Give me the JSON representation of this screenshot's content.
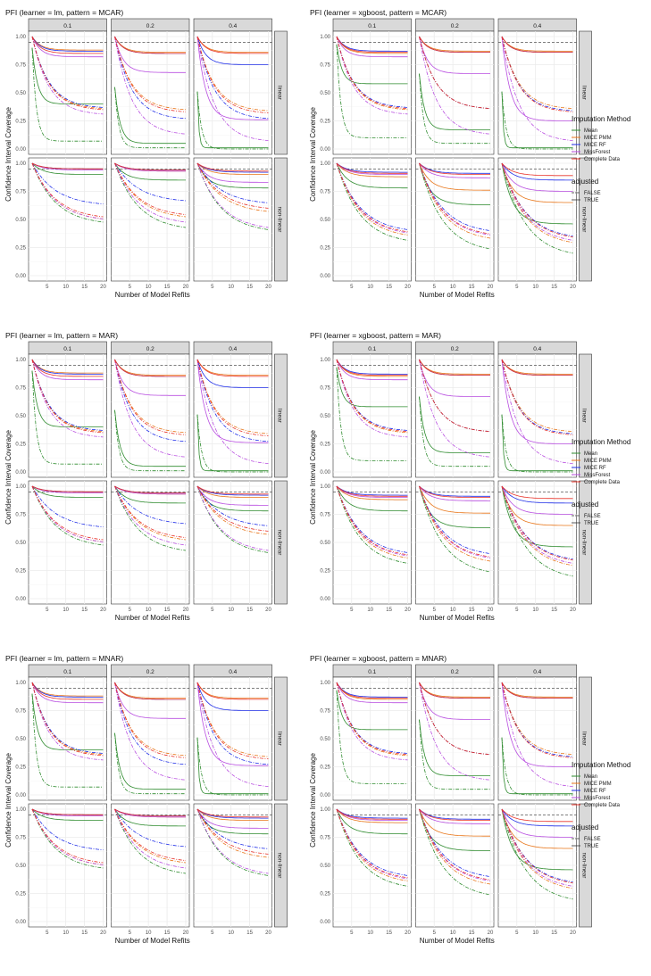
{
  "common": {
    "xlabel": "Number of Model Refits",
    "ylabel": "Confidence Interval Coverage",
    "col_strips": [
      "0.1",
      "0.2",
      "0.4"
    ],
    "row_strips": [
      "linear",
      "non-linear"
    ],
    "x_ticks": [
      "5",
      "10",
      "15",
      "20"
    ],
    "y_ticks": [
      "0.00",
      "0.25",
      "0.50",
      "0.75",
      "1.00"
    ],
    "nominal_level": 0.95,
    "legend": {
      "method_title": "Imputation Method",
      "methods": [
        {
          "label": "Mean",
          "color": "#2e8b2e"
        },
        {
          "label": "MICE PMM",
          "color": "#e87518"
        },
        {
          "label": "MICE RF",
          "color": "#1f2ee8"
        },
        {
          "label": "MissForest",
          "color": "#b84de0"
        },
        {
          "label": "Complete Data",
          "color": "#e8342b"
        }
      ],
      "adjusted_title": "adjusted",
      "adjusted": [
        {
          "label": "FALSE",
          "linetype": "dotdash"
        },
        {
          "label": "TRUE",
          "linetype": "solid"
        }
      ]
    }
  },
  "chart_data": [
    {
      "type": "line",
      "title": "PFI (learner = lm, pattern = MCAR)",
      "xlim": [
        1,
        20
      ],
      "ylim": [
        0,
        1
      ]
    },
    {
      "type": "line",
      "title": "PFI (learner = xgboost, pattern = MCAR)",
      "xlim": [
        1,
        20
      ],
      "ylim": [
        0,
        1
      ]
    },
    {
      "type": "line",
      "title": "PFI (learner = lm, pattern = MAR)",
      "xlim": [
        1,
        20
      ],
      "ylim": [
        0,
        1
      ]
    },
    {
      "type": "line",
      "title": "PFI (learner = xgboost, pattern = MAR)",
      "xlim": [
        1,
        20
      ],
      "ylim": [
        0,
        1
      ]
    },
    {
      "type": "line",
      "title": "PFI (learner = lm, pattern = MNAR)",
      "xlim": [
        1,
        20
      ],
      "ylim": [
        0,
        1
      ]
    },
    {
      "type": "line",
      "title": "PFI (learner = xgboost, pattern = MNAR)",
      "xlim": [
        1,
        20
      ],
      "ylim": [
        0,
        1
      ]
    }
  ],
  "series_params": {
    "note": "approximate curve shape per panel: start value at x=1, end value at x=20, decay rate; order = lm-linear, lm-nonlinear, xgb-linear, xgb-nonlinear per missing rate 0.1/0.2/0.4",
    "lm_linear": {
      "0.1": {
        "Mean": [
          0.4,
          0.07
        ],
        "MICE PMM": [
          0.88,
          0.35
        ],
        "MICE RF": [
          0.87,
          0.36
        ],
        "MissForest": [
          0.82,
          0.3
        ],
        "Complete Data": [
          0.85,
          0.34
        ]
      },
      "0.2": {
        "Mean": [
          0.05,
          0.01
        ],
        "MICE PMM": [
          0.86,
          0.34
        ],
        "MICE RF": [
          0.85,
          0.26
        ],
        "MissForest": [
          0.68,
          0.12
        ],
        "Complete Data": [
          0.85,
          0.32
        ]
      },
      "0.4": {
        "Mean": [
          0.01,
          0.0
        ],
        "MICE PMM": [
          0.86,
          0.33
        ],
        "MICE RF": [
          0.75,
          0.26
        ],
        "MissForest": [
          0.26,
          0.06
        ],
        "Complete Data": [
          0.85,
          0.31
        ]
      }
    },
    "lm_nonlinear": {
      "0.1": {
        "Mean": [
          0.9,
          0.45
        ],
        "MICE PMM": [
          0.95,
          0.48
        ],
        "MICE RF": [
          0.95,
          0.62
        ],
        "MissForest": [
          0.94,
          0.48
        ],
        "Complete Data": [
          0.95,
          0.5
        ]
      },
      "0.2": {
        "Mean": [
          0.85,
          0.4
        ],
        "MICE PMM": [
          0.93,
          0.5
        ],
        "MICE RF": [
          0.94,
          0.65
        ],
        "MissForest": [
          0.93,
          0.45
        ],
        "Complete Data": [
          0.94,
          0.52
        ]
      },
      "0.4": {
        "Mean": [
          0.78,
          0.38
        ],
        "MICE PMM": [
          0.9,
          0.55
        ],
        "MICE RF": [
          0.92,
          0.63
        ],
        "MissForest": [
          0.83,
          0.4
        ],
        "Complete Data": [
          0.93,
          0.58
        ]
      }
    },
    "xgb_linear": {
      "0.1": {
        "Mean": [
          0.58,
          0.1
        ],
        "MICE PMM": [
          0.85,
          0.34
        ],
        "MICE RF": [
          0.87,
          0.36
        ],
        "MissForest": [
          0.82,
          0.3
        ],
        "Complete Data": [
          0.86,
          0.35
        ]
      },
      "0.2": {
        "Mean": [
          0.17,
          0.05
        ],
        "MICE PMM": [
          0.87,
          0.35
        ],
        "MICE RF": [
          0.86,
          0.35
        ],
        "MissForest": [
          0.67,
          0.12
        ],
        "Complete Data": [
          0.86,
          0.35
        ]
      },
      "0.4": {
        "Mean": [
          0.01,
          0.0
        ],
        "MICE PMM": [
          0.87,
          0.35
        ],
        "MICE RF": [
          0.86,
          0.33
        ],
        "MissForest": [
          0.25,
          0.06
        ],
        "Complete Data": [
          0.86,
          0.32
        ]
      }
    },
    "xgb_nonlinear": {
      "0.1": {
        "Mean": [
          0.78,
          0.28
        ],
        "MICE PMM": [
          0.88,
          0.33
        ],
        "MICE RF": [
          0.92,
          0.38
        ],
        "MissForest": [
          0.9,
          0.35
        ],
        "Complete Data": [
          0.91,
          0.36
        ]
      },
      "0.2": {
        "Mean": [
          0.63,
          0.2
        ],
        "MICE PMM": [
          0.76,
          0.3
        ],
        "MICE RF": [
          0.91,
          0.37
        ],
        "MissForest": [
          0.87,
          0.33
        ],
        "Complete Data": [
          0.9,
          0.34
        ]
      },
      "0.4": {
        "Mean": [
          0.46,
          0.16
        ],
        "MICE PMM": [
          0.65,
          0.26
        ],
        "MICE RF": [
          0.85,
          0.32
        ],
        "MissForest": [
          0.75,
          0.28
        ],
        "Complete Data": [
          0.89,
          0.31
        ]
      }
    }
  }
}
